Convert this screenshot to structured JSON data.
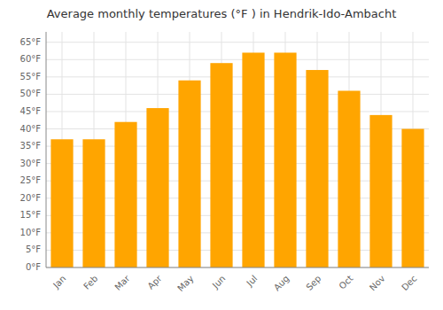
{
  "chart_data": {
    "type": "bar",
    "title": "Average monthly temperatures (°F ) in Hendrik-Ido-Ambacht",
    "categories": [
      "Jan",
      "Feb",
      "Mar",
      "Apr",
      "May",
      "Jun",
      "Jul",
      "Aug",
      "Sep",
      "Oct",
      "Nov",
      "Dec"
    ],
    "values": [
      37,
      37,
      42,
      46,
      54,
      59,
      62,
      62,
      57,
      51,
      44,
      40
    ],
    "color": "#FFA500",
    "ylim": [
      0,
      68
    ],
    "yticks": [
      {
        "value": 0,
        "label": "0°F"
      },
      {
        "value": 5,
        "label": "5°F"
      },
      {
        "value": 10,
        "label": "10°F"
      },
      {
        "value": 15,
        "label": "15°F"
      },
      {
        "value": 20,
        "label": "20°F"
      },
      {
        "value": 25,
        "label": "25°F"
      },
      {
        "value": 30,
        "label": "30°F"
      },
      {
        "value": 35,
        "label": "35°F"
      },
      {
        "value": 40,
        "label": "40°F"
      },
      {
        "value": 45,
        "label": "45°F"
      },
      {
        "value": 50,
        "label": "50°F"
      },
      {
        "value": 55,
        "label": "55°F"
      },
      {
        "value": 60,
        "label": "60°F"
      },
      {
        "value": 65,
        "label": "65°F"
      }
    ],
    "grid": true
  }
}
